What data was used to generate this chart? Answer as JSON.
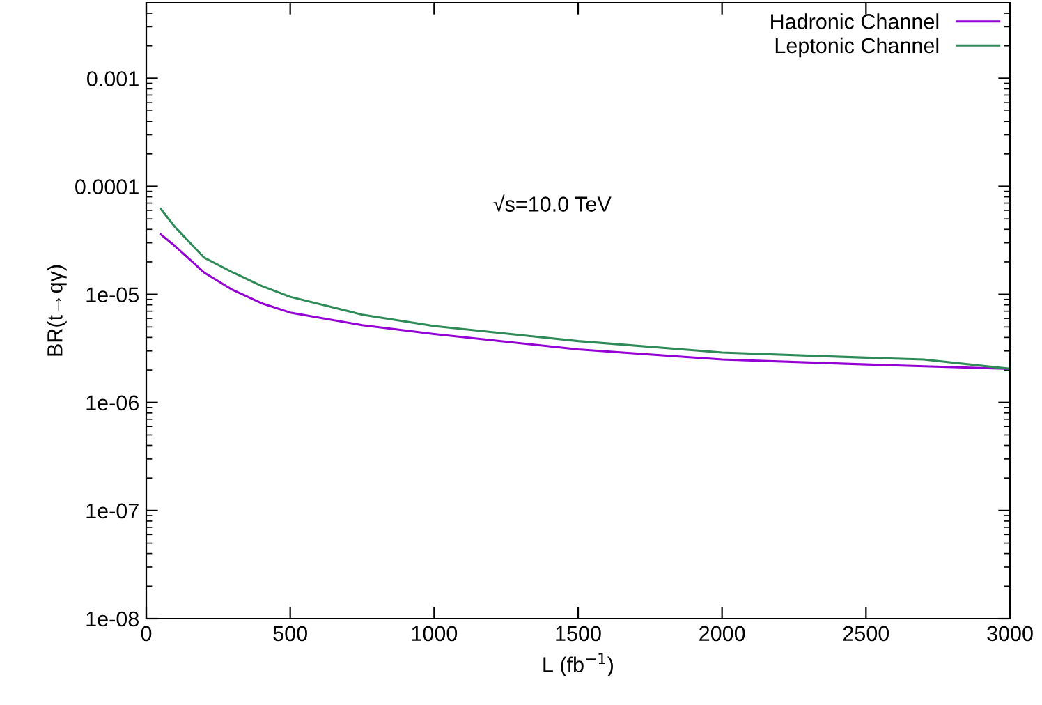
{
  "chart_data": {
    "type": "line",
    "xlabel": "L (fb$^{−1}$)",
    "ylabel": "BR(t→qγ)",
    "annotations": [
      "√s=10.0 TeV"
    ],
    "series": [
      {
        "name": "Hadronic Channel",
        "color": "#9400d3",
        "x": [
          50,
          100,
          200,
          300,
          400,
          500,
          750,
          1000,
          1500,
          2000,
          2500,
          3000
        ],
        "values": [
          3.6e-05,
          2.8e-05,
          1.6e-05,
          1.1e-05,
          8.3e-06,
          6.8e-06,
          5.2e-06,
          4.3e-06,
          3.1e-06,
          2.5e-06,
          2.25e-06,
          2.05e-06
        ]
      },
      {
        "name": "Leptonic Channel",
        "color": "#2e8b57",
        "x": [
          50,
          100,
          200,
          300,
          400,
          500,
          750,
          1000,
          1500,
          2000,
          2500,
          2700,
          3000
        ],
        "values": [
          6.2e-05,
          4.2e-05,
          2.2e-05,
          1.6e-05,
          1.2e-05,
          9.5e-06,
          6.5e-06,
          5.1e-06,
          3.7e-06,
          2.9e-06,
          2.6e-06,
          2.5e-06,
          2.05e-06
        ]
      }
    ],
    "log": "y",
    "xlim": [
      0,
      3000
    ],
    "xticks": [
      0,
      500,
      1000,
      1500,
      2000,
      2500,
      3000
    ],
    "ylim": [
      1e-08,
      0.005
    ],
    "yticks": [
      {
        "value": 1e-08,
        "label": "1e-08"
      },
      {
        "value": 1e-07,
        "label": "1e-07"
      },
      {
        "value": 1e-06,
        "label": "1e-06"
      },
      {
        "value": 1e-05,
        "label": "1e-05"
      },
      0.0001,
      0.001
    ],
    "legend": "top right",
    "grid": false,
    "marker": "none",
    "line_style": "solid"
  }
}
